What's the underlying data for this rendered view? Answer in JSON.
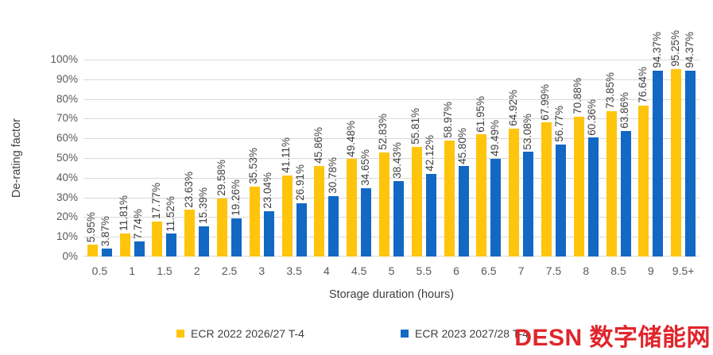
{
  "chart_data": {
    "type": "bar",
    "title": "",
    "xlabel": "Storage duration (hours)",
    "ylabel": "De-rating factor",
    "ylim": [
      0,
      100
    ],
    "grid": true,
    "legend_position": "bottom",
    "y_ticks": [
      "0%",
      "10%",
      "20%",
      "30%",
      "40%",
      "50%",
      "60%",
      "70%",
      "80%",
      "90%",
      "100%"
    ],
    "categories": [
      "0.5",
      "1",
      "1.5",
      "2",
      "2.5",
      "3",
      "3.5",
      "4",
      "4.5",
      "5",
      "5.5",
      "6",
      "6.5",
      "7",
      "7.5",
      "8",
      "8.5",
      "9",
      "9.5+"
    ],
    "series": [
      {
        "name": "ECR 2022 2026/27 T-4",
        "color": "#FFC40C",
        "values": [
          5.95,
          11.81,
          17.77,
          23.63,
          29.58,
          35.53,
          41.11,
          45.86,
          49.48,
          52.83,
          55.81,
          58.97,
          61.95,
          64.92,
          67.99,
          70.88,
          73.85,
          76.64,
          95.25
        ],
        "labels": [
          "5.95%",
          "11.81%",
          "17.77%",
          "23.63%",
          "29.58%",
          "35.53%",
          "41.11%",
          "45.86%",
          "49.48%",
          "52.83%",
          "55.81%",
          "58.97%",
          "61.95%",
          "64.92%",
          "67.99%",
          "70.88%",
          "73.85%",
          "76.64%",
          "95.25%"
        ]
      },
      {
        "name": "ECR 2023 2027/28 T-4",
        "color": "#1268C3",
        "values": [
          3.87,
          7.74,
          11.52,
          15.39,
          19.26,
          23.04,
          26.91,
          30.78,
          34.65,
          38.43,
          42.12,
          45.8,
          49.49,
          53.08,
          56.77,
          60.36,
          63.86,
          94.37,
          94.37
        ],
        "labels": [
          "3.87%",
          "7.74%",
          "11.52%",
          "15.39%",
          "19.26%",
          "23.04%",
          "26.91%",
          "30.78%",
          "34.65%",
          "38.43%",
          "42.12%",
          "45.80%",
          "49.49%",
          "53.08%",
          "56.77%",
          "60.36%",
          "63.86%",
          "94.37%",
          "94.37%"
        ]
      }
    ]
  },
  "watermark": {
    "text": "DESN 数字储能网",
    "color": "#E0252B"
  },
  "colors": {
    "gridline": "#d9d9d9",
    "axis_text": "#595959",
    "label_text": "#3f3f3f"
  }
}
